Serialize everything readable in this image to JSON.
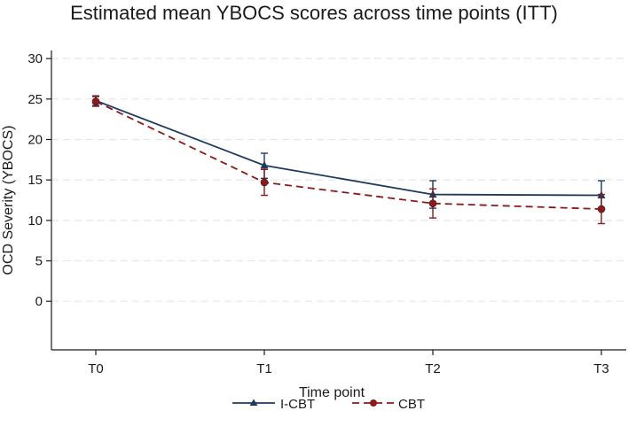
{
  "chart_data": {
    "type": "line",
    "title": "Estimated mean YBOCS scores across time points (ITT)",
    "xlabel": "Time point",
    "ylabel": "OCD Severity (YBOCS)",
    "categories": [
      "T0",
      "T1",
      "T2",
      "T3"
    ],
    "ylim": [
      -6,
      31
    ],
    "yticks": [
      0,
      5,
      10,
      15,
      20,
      25,
      30
    ],
    "grid": true,
    "legend_position": "bottom",
    "series": [
      {
        "name": "I-CBT",
        "values": [
          24.8,
          16.8,
          13.2,
          13.1
        ],
        "ci_low": [
          24.2,
          15.2,
          11.5,
          11.3
        ],
        "ci_high": [
          25.4,
          18.3,
          14.9,
          14.9
        ],
        "color": "#1f3a5f",
        "line_style": "solid",
        "marker": "triangle"
      },
      {
        "name": "CBT",
        "values": [
          24.7,
          14.7,
          12.1,
          11.4
        ],
        "ci_low": [
          24.1,
          13.1,
          10.3,
          9.6
        ],
        "ci_high": [
          25.3,
          16.3,
          13.9,
          13.2
        ],
        "color": "#8b1a1a",
        "line_style": "dashed",
        "marker": "circle"
      }
    ]
  }
}
